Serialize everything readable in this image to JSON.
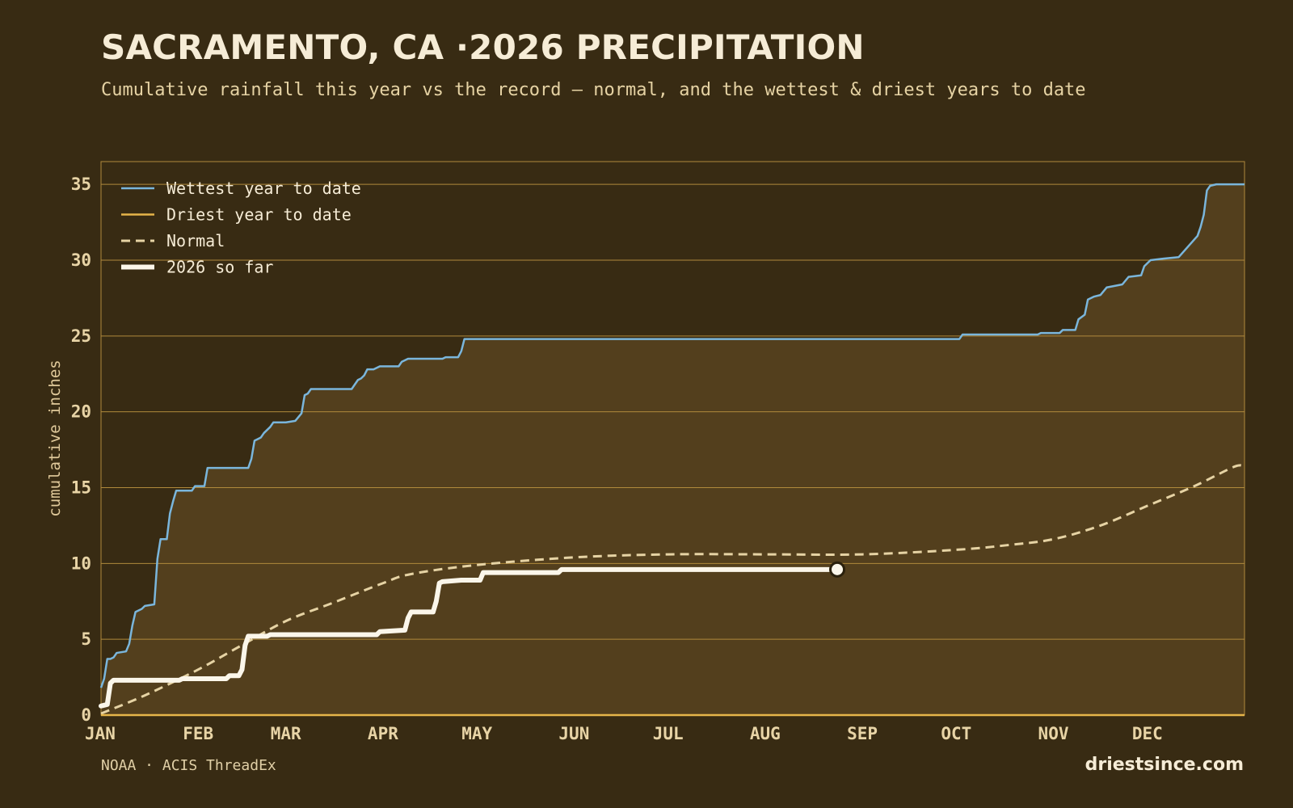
{
  "page": {
    "title": "SACRAMENTO, CA ·2026 PRECIPITATION",
    "subtitle": "Cumulative rainfall this year vs the record — normal, and the wettest & driest years to date",
    "source": "NOAA · ACIS ThreadEx",
    "brand": "driestsince.com"
  },
  "colors": {
    "background": "#382b13",
    "fill": "#533f1d",
    "grid": "#b08a3c",
    "wettest": "#7ab6dc",
    "driest": "#e6b54a",
    "normal": "#e6d3a4",
    "current": "#fbf6ea"
  },
  "chart_data": {
    "type": "line",
    "title": "SACRAMENTO, CA ·2026 PRECIPITATION",
    "subtitle": "Cumulative rainfall this year vs the record — normal, and the wettest & driest years to date",
    "xlabel": "",
    "ylabel": "cumulative inches",
    "x_unit": "day of year",
    "xlim": [
      1,
      366
    ],
    "ylim": [
      0,
      36.5
    ],
    "y_ticks": [
      0,
      5,
      10,
      15,
      20,
      25,
      30,
      35
    ],
    "x_ticks": [
      {
        "label": "JAN",
        "day": 1
      },
      {
        "label": "FEB",
        "day": 32
      },
      {
        "label": "MAR",
        "day": 60
      },
      {
        "label": "APR",
        "day": 91
      },
      {
        "label": "MAY",
        "day": 121
      },
      {
        "label": "JUN",
        "day": 152
      },
      {
        "label": "JUL",
        "day": 182
      },
      {
        "label": "AUG",
        "day": 213
      },
      {
        "label": "SEP",
        "day": 244
      },
      {
        "label": "OCT",
        "day": 274
      },
      {
        "label": "NOV",
        "day": 305
      },
      {
        "label": "DEC",
        "day": 335
      }
    ],
    "grid": true,
    "legend_position": "top-left",
    "series": [
      {
        "key": "wettest",
        "name": "Wettest year to date",
        "style": "step",
        "points": [
          [
            1,
            1.8
          ],
          [
            2,
            2.4
          ],
          [
            3,
            3.7
          ],
          [
            4,
            3.7
          ],
          [
            5,
            3.8
          ],
          [
            6,
            4.1
          ],
          [
            9,
            4.2
          ],
          [
            10,
            4.7
          ],
          [
            11,
            5.9
          ],
          [
            12,
            6.8
          ],
          [
            14,
            7.0
          ],
          [
            15,
            7.2
          ],
          [
            18,
            7.3
          ],
          [
            19,
            10.3
          ],
          [
            20,
            11.6
          ],
          [
            22,
            11.6
          ],
          [
            23,
            13.3
          ],
          [
            24,
            14.1
          ],
          [
            25,
            14.8
          ],
          [
            30,
            14.8
          ],
          [
            31,
            15.1
          ],
          [
            34,
            15.1
          ],
          [
            35,
            16.3
          ],
          [
            48,
            16.3
          ],
          [
            49,
            16.9
          ],
          [
            50,
            18.1
          ],
          [
            51,
            18.2
          ],
          [
            52,
            18.3
          ],
          [
            53,
            18.6
          ],
          [
            55,
            19.0
          ],
          [
            56,
            19.3
          ],
          [
            60,
            19.3
          ],
          [
            63,
            19.4
          ],
          [
            65,
            19.9
          ],
          [
            66,
            21.1
          ],
          [
            67,
            21.2
          ],
          [
            68,
            21.5
          ],
          [
            81,
            21.5
          ],
          [
            82,
            21.8
          ],
          [
            83,
            22.1
          ],
          [
            84,
            22.2
          ],
          [
            85,
            22.4
          ],
          [
            86,
            22.8
          ],
          [
            88,
            22.8
          ],
          [
            90,
            23.0
          ],
          [
            96,
            23.0
          ],
          [
            97,
            23.3
          ],
          [
            99,
            23.5
          ],
          [
            110,
            23.5
          ],
          [
            111,
            23.6
          ],
          [
            115,
            23.6
          ],
          [
            116,
            24.0
          ],
          [
            117,
            24.8
          ],
          [
            200,
            24.8
          ],
          [
            275,
            24.8
          ],
          [
            276,
            25.1
          ],
          [
            300,
            25.1
          ],
          [
            301,
            25.2
          ],
          [
            307,
            25.2
          ],
          [
            308,
            25.4
          ],
          [
            312,
            25.4
          ],
          [
            313,
            26.1
          ],
          [
            315,
            26.4
          ],
          [
            316,
            27.4
          ],
          [
            318,
            27.6
          ],
          [
            320,
            27.7
          ],
          [
            322,
            28.2
          ],
          [
            327,
            28.4
          ],
          [
            329,
            28.9
          ],
          [
            333,
            29.0
          ],
          [
            334,
            29.6
          ],
          [
            336,
            30.0
          ],
          [
            340,
            30.1
          ],
          [
            345,
            30.2
          ],
          [
            351,
            31.6
          ],
          [
            352,
            32.2
          ],
          [
            353,
            33.0
          ],
          [
            354,
            34.6
          ],
          [
            355,
            34.9
          ],
          [
            357,
            35.0
          ],
          [
            366,
            35.0
          ]
        ]
      },
      {
        "key": "driest",
        "name": "Driest year to date",
        "style": "step",
        "points": [
          [
            1,
            0
          ],
          [
            366,
            0
          ]
        ]
      },
      {
        "key": "normal",
        "name": "Normal",
        "style": "dashed",
        "points": [
          [
            1,
            0.1
          ],
          [
            15,
            1.3
          ],
          [
            32,
            3.0
          ],
          [
            45,
            4.5
          ],
          [
            60,
            6.2
          ],
          [
            75,
            7.4
          ],
          [
            91,
            8.7
          ],
          [
            100,
            9.3
          ],
          [
            121,
            9.9
          ],
          [
            152,
            10.4
          ],
          [
            182,
            10.6
          ],
          [
            213,
            10.6
          ],
          [
            244,
            10.6
          ],
          [
            274,
            10.9
          ],
          [
            290,
            11.2
          ],
          [
            305,
            11.6
          ],
          [
            320,
            12.5
          ],
          [
            335,
            13.8
          ],
          [
            350,
            15.1
          ],
          [
            363,
            16.4
          ],
          [
            366,
            16.3
          ]
        ]
      },
      {
        "key": "current",
        "name": "2026 so far",
        "style": "step",
        "points": [
          [
            1,
            0.6
          ],
          [
            3,
            0.7
          ],
          [
            4,
            2.1
          ],
          [
            5,
            2.3
          ],
          [
            26,
            2.3
          ],
          [
            27,
            2.4
          ],
          [
            41,
            2.4
          ],
          [
            42,
            2.6
          ],
          [
            45,
            2.6
          ],
          [
            46,
            3.0
          ],
          [
            47,
            4.6
          ],
          [
            48,
            5.2
          ],
          [
            54,
            5.2
          ],
          [
            55,
            5.3
          ],
          [
            89,
            5.3
          ],
          [
            90,
            5.5
          ],
          [
            98,
            5.6
          ],
          [
            99,
            6.4
          ],
          [
            100,
            6.8
          ],
          [
            107,
            6.8
          ],
          [
            108,
            7.5
          ],
          [
            109,
            8.7
          ],
          [
            110,
            8.8
          ],
          [
            116,
            8.9
          ],
          [
            122,
            8.9
          ],
          [
            123,
            9.4
          ],
          [
            147,
            9.4
          ],
          [
            148,
            9.6
          ],
          [
            236,
            9.6
          ]
        ],
        "end_marker": true
      }
    ]
  }
}
